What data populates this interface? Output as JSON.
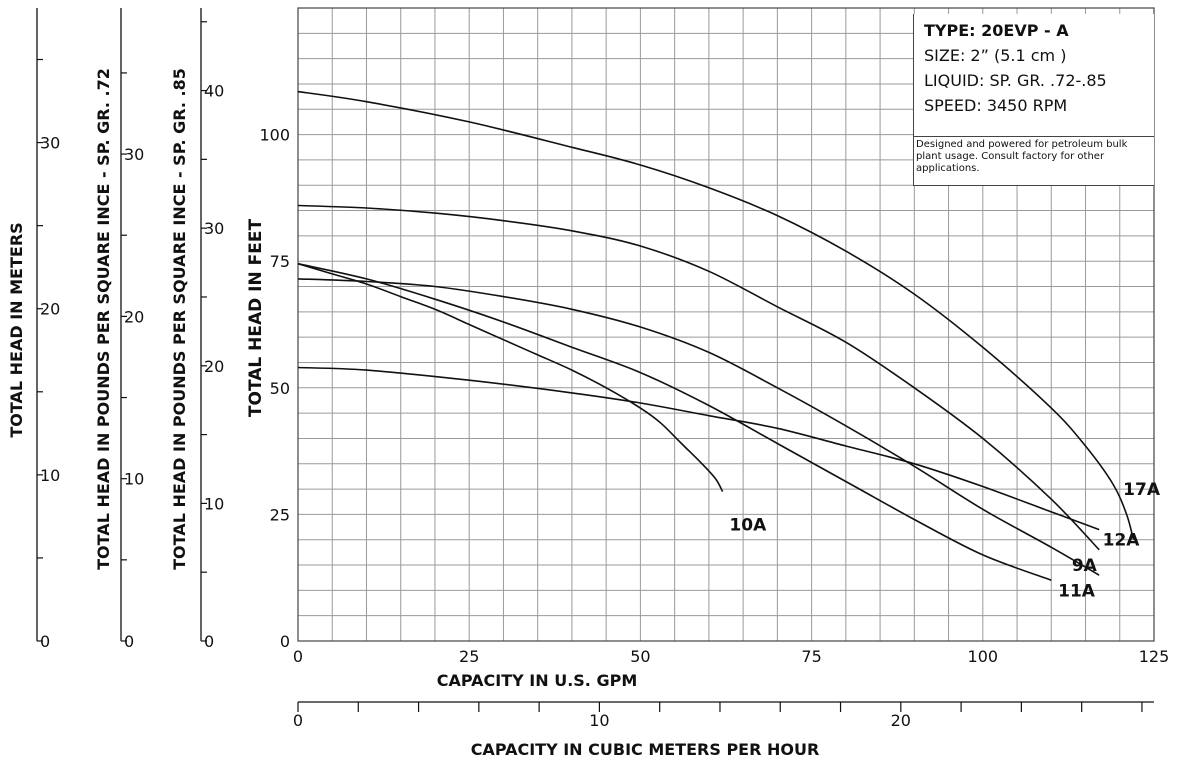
{
  "chart_data": {
    "type": "line",
    "xlabel": "CAPACITY IN U.S. GPM",
    "ylabel": "TOTAL HEAD IN FEET",
    "xlim": [
      0,
      125
    ],
    "ylim": [
      0,
      125
    ],
    "x_ticks": [
      0,
      25,
      50,
      75,
      100,
      125
    ],
    "y_ticks": [
      0,
      25,
      50,
      75,
      100
    ],
    "grid": true,
    "series": [
      {
        "name": "17A",
        "x": [
          0,
          10,
          25,
          40,
          50,
          60,
          70,
          80,
          90,
          100,
          110,
          115,
          119,
          121,
          122
        ],
        "y": [
          108.5,
          106.5,
          102.5,
          97.5,
          94,
          89.5,
          84,
          77,
          68.5,
          58,
          46,
          38.5,
          31,
          25,
          20
        ]
      },
      {
        "name": "12A",
        "x": [
          0,
          10,
          20,
          30,
          40,
          50,
          60,
          70,
          80,
          90,
          100,
          110,
          117
        ],
        "y": [
          86,
          85.5,
          84.5,
          83,
          81,
          78,
          73,
          66,
          59,
          50,
          40,
          28,
          18
        ]
      },
      {
        "name": "9A",
        "x": [
          0,
          10,
          20,
          30,
          40,
          50,
          60,
          70,
          80,
          90,
          100,
          110,
          117
        ],
        "y": [
          71.5,
          71,
          70,
          68,
          65.5,
          62,
          57,
          50,
          42.5,
          34.5,
          26,
          18.5,
          13
        ]
      },
      {
        "name": "11A",
        "x": [
          0,
          10,
          20,
          30,
          40,
          50,
          60,
          70,
          80,
          90,
          100,
          110
        ],
        "y": [
          74.5,
          71.5,
          67.5,
          63,
          58,
          53,
          46.5,
          39,
          31.5,
          24,
          17,
          12
        ]
      },
      {
        "name": "10A",
        "x": [
          0,
          5,
          10,
          15,
          20,
          25,
          30,
          35,
          40,
          45,
          50,
          53,
          56,
          59,
          61,
          62
        ],
        "y": [
          74.5,
          72.5,
          70.5,
          68,
          65.5,
          62.5,
          59.5,
          56.5,
          53.5,
          50,
          46,
          43,
          39,
          35,
          32,
          29.5
        ]
      },
      {
        "name": "",
        "x": [
          0,
          10,
          25,
          40,
          50,
          60,
          70,
          80,
          90,
          100,
          110,
          117
        ],
        "y": [
          54,
          53.5,
          51.5,
          49,
          47,
          44.5,
          42,
          38.5,
          35,
          30.5,
          25.5,
          22
        ]
      }
    ],
    "curve_labels": [
      {
        "text": "17A",
        "x": 120.5,
        "y": 30
      },
      {
        "text": "12A",
        "x": 117.5,
        "y": 20
      },
      {
        "text": "9A",
        "x": 113,
        "y": 15
      },
      {
        "text": "11A",
        "x": 111,
        "y": 10
      },
      {
        "text": "10A",
        "x": 63,
        "y": 23
      }
    ],
    "secondary_axes": [
      {
        "label": "TOTAL HEAD IN METERS",
        "range": [
          0,
          38.1
        ],
        "major": [
          0,
          10,
          20,
          30
        ],
        "minor_step": 5
      },
      {
        "label": "TOTAL HEAD IN POUNDS PER SQUARE INCE - SP. GR. .72",
        "range": [
          0,
          39
        ],
        "major": [
          0,
          10,
          20,
          30
        ],
        "minor_step": 5
      },
      {
        "label": "TOTAL HEAD IN POUNDS PER SQUARE INCE - SP. GR. .85",
        "range": [
          0,
          46
        ],
        "major": [
          0,
          10,
          20,
          30,
          40
        ],
        "minor_step": 5
      }
    ],
    "bottom_axis": {
      "label": "CAPACITY IN CUBIC METERS PER HOUR",
      "range": [
        0,
        28.4
      ],
      "major": [
        0,
        10,
        20
      ],
      "minor_step": 2
    }
  },
  "info": {
    "title": "TYPE: 20EVP - A",
    "size": "SIZE: 2” (5.1 cm )",
    "liquid": "LIQUID: SP. GR. .72-.85",
    "speed": "SPEED: 3450 RPM",
    "note": "Designed and powered for petroleum bulk plant usage. Consult factory for other applications."
  }
}
